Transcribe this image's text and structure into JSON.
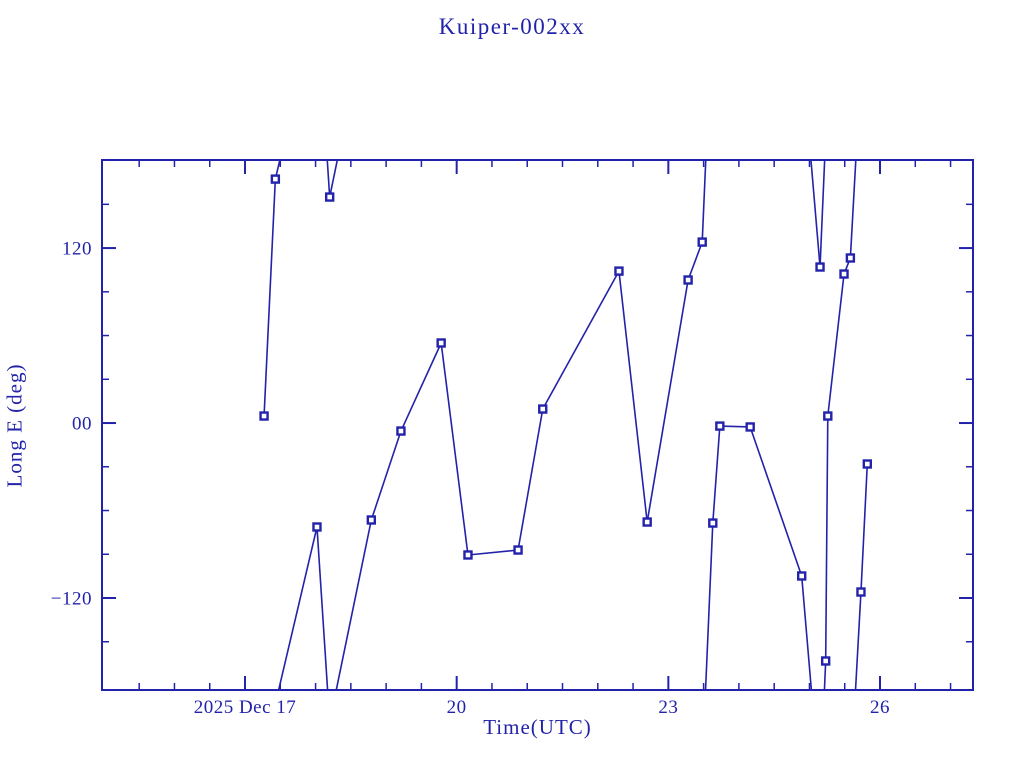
{
  "chart_data": {
    "type": "line",
    "title": "Kuiper-002xx",
    "xlabel": "Time(UTC)",
    "ylabel": "Long E (deg)",
    "color": "#2222AA",
    "background": "#FFFFFF",
    "legend": "none",
    "grid": false,
    "x_axis_unit": "day of 2025 December (UTC)",
    "xlim": [
      14.973,
      27.318
    ],
    "ylim": [
      -183.1,
      180.4
    ],
    "wrap_degrees": 360,
    "x_ticks_major": [
      {
        "day": 17,
        "label": "2025 Dec 17"
      },
      {
        "day": 20,
        "label": "20"
      },
      {
        "day": 23,
        "label": "23"
      },
      {
        "day": 26,
        "label": "26"
      }
    ],
    "x_ticks_minor_days": [
      15.5,
      16,
      16.5,
      17.5,
      18,
      18.5,
      19,
      19.5,
      20.5,
      21,
      21.5,
      22,
      22.5,
      23.5,
      24,
      24.5,
      25,
      25.5,
      26.5,
      27
    ],
    "y_ticks_major": [
      {
        "value": 120,
        "label": "120"
      },
      {
        "value": 0,
        "label": "00"
      },
      {
        "value": -120,
        "label": "−120"
      }
    ],
    "y_ticks_minor_values": [
      150,
      90,
      60,
      30,
      -30,
      -60,
      -90,
      -150
    ],
    "points": [
      {
        "day": 17.27,
        "long_e_deg": 4.8
      },
      {
        "day": 17.43,
        "long_e_deg": 167.3
      },
      {
        "day": 18.02,
        "long_e_deg": -71.3
      },
      {
        "day": 18.2,
        "long_e_deg": 155.0
      },
      {
        "day": 18.79,
        "long_e_deg": -66.5
      },
      {
        "day": 19.21,
        "long_e_deg": -5.5
      },
      {
        "day": 19.78,
        "long_e_deg": 54.9
      },
      {
        "day": 20.16,
        "long_e_deg": -90.5
      },
      {
        "day": 20.87,
        "long_e_deg": -87.1
      },
      {
        "day": 21.22,
        "long_e_deg": 9.6
      },
      {
        "day": 22.3,
        "long_e_deg": 104.2
      },
      {
        "day": 22.7,
        "long_e_deg": -67.9
      },
      {
        "day": 23.28,
        "long_e_deg": 98.1
      },
      {
        "day": 23.48,
        "long_e_deg": 124.1
      },
      {
        "day": 23.63,
        "long_e_deg": -68.6
      },
      {
        "day": 23.73,
        "long_e_deg": -2.1
      },
      {
        "day": 24.16,
        "long_e_deg": -2.7
      },
      {
        "day": 24.89,
        "long_e_deg": -104.9
      },
      {
        "day": 25.15,
        "long_e_deg": 107.0
      },
      {
        "day": 25.23,
        "long_e_deg": -163.2
      },
      {
        "day": 25.26,
        "long_e_deg": 4.8
      },
      {
        "day": 25.49,
        "long_e_deg": 102.2
      },
      {
        "day": 25.58,
        "long_e_deg": 113.2
      },
      {
        "day": 25.73,
        "long_e_deg": -115.9
      },
      {
        "day": 25.82,
        "long_e_deg": -28.1
      }
    ]
  }
}
